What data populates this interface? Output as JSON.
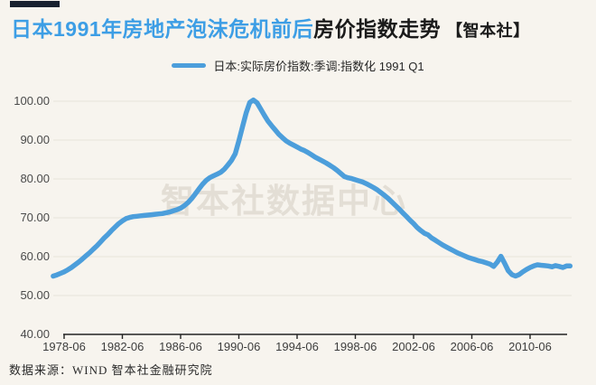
{
  "page": {
    "background": "#f7f4ee"
  },
  "header": {
    "title_highlight": "日本1991年房地产泡沫危机前后",
    "title_main": "房价指数走势",
    "brand_badge": "【智本社】"
  },
  "legend": {
    "label": "日本:实际房价指数:季调:指数化 1991 Q1"
  },
  "footer": {
    "source": "数据来源：WIND 智本社金融研究院"
  },
  "chart_data": {
    "type": "line",
    "title": "日本1991年房地产泡沫危机前后房价指数走势",
    "watermark": "智本社数据中心",
    "grid": "horizontal",
    "legend_position": "top-center",
    "y_axis": {
      "min": 40,
      "max": 100,
      "step": 10,
      "tick_labels": [
        "100.00",
        "90.00",
        "80.00",
        "70.00",
        "60.00",
        "50.00",
        "40.00"
      ]
    },
    "x_axis": {
      "tick_labels": [
        "1978-06",
        "1982-06",
        "1986-06",
        "1990-06",
        "1994-06",
        "1998-06",
        "2002-06",
        "2006-06",
        "2010-06"
      ]
    },
    "series": [
      {
        "name": "日本:实际房价指数:季调:指数化 1991 Q1",
        "color": "#4c9edb",
        "x": [
          "1977-09",
          "1977-12",
          "1978-03",
          "1978-06",
          "1978-09",
          "1978-12",
          "1979-03",
          "1979-06",
          "1979-09",
          "1979-12",
          "1980-03",
          "1980-06",
          "1980-09",
          "1980-12",
          "1981-03",
          "1981-06",
          "1981-09",
          "1981-12",
          "1982-03",
          "1982-06",
          "1982-09",
          "1982-12",
          "1983-03",
          "1983-06",
          "1983-09",
          "1983-12",
          "1984-03",
          "1984-06",
          "1984-09",
          "1984-12",
          "1985-03",
          "1985-06",
          "1985-09",
          "1985-12",
          "1986-03",
          "1986-06",
          "1986-09",
          "1986-12",
          "1987-03",
          "1987-06",
          "1987-09",
          "1987-12",
          "1988-03",
          "1988-06",
          "1988-09",
          "1988-12",
          "1989-03",
          "1989-06",
          "1989-09",
          "1989-12",
          "1990-03",
          "1990-06",
          "1990-09",
          "1990-12",
          "1991-03",
          "1991-06",
          "1991-09",
          "1991-12",
          "1992-03",
          "1992-06",
          "1992-09",
          "1992-12",
          "1993-03",
          "1993-06",
          "1993-09",
          "1993-12",
          "1994-03",
          "1994-06",
          "1994-09",
          "1994-12",
          "1995-03",
          "1995-06",
          "1995-09",
          "1995-12",
          "1996-03",
          "1996-06",
          "1996-09",
          "1996-12",
          "1997-03",
          "1997-06",
          "1997-09",
          "1997-12",
          "1998-03",
          "1998-06",
          "1998-09",
          "1998-12",
          "1999-03",
          "1999-06",
          "1999-09",
          "1999-12",
          "2000-03",
          "2000-06",
          "2000-09",
          "2000-12",
          "2001-03",
          "2001-06",
          "2001-09",
          "2001-12",
          "2002-03",
          "2002-06",
          "2002-09",
          "2002-12",
          "2003-03",
          "2003-06",
          "2003-09",
          "2003-12",
          "2004-03",
          "2004-06",
          "2004-09",
          "2004-12",
          "2005-03",
          "2005-06",
          "2005-09",
          "2005-12",
          "2006-03",
          "2006-06",
          "2006-09",
          "2006-12",
          "2007-03",
          "2007-06",
          "2007-09",
          "2007-12",
          "2008-03",
          "2008-06",
          "2008-09",
          "2008-12",
          "2009-03",
          "2009-06",
          "2009-09",
          "2009-12",
          "2010-03",
          "2010-06",
          "2010-09",
          "2010-12",
          "2011-03",
          "2011-06",
          "2011-09",
          "2011-12",
          "2012-03",
          "2012-06",
          "2012-09",
          "2012-12",
          "2013-03"
        ],
        "values": [
          55.0,
          55.3,
          55.7,
          56.1,
          56.6,
          57.2,
          57.9,
          58.6,
          59.4,
          60.2,
          61.0,
          61.9,
          62.8,
          63.8,
          64.8,
          65.7,
          66.7,
          67.6,
          68.5,
          69.2,
          69.8,
          70.1,
          70.3,
          70.4,
          70.5,
          70.6,
          70.7,
          70.8,
          70.9,
          71.0,
          71.1,
          71.3,
          71.5,
          71.8,
          72.1,
          72.5,
          73.1,
          73.9,
          74.9,
          76.1,
          77.4,
          78.6,
          79.6,
          80.3,
          80.8,
          81.2,
          81.7,
          82.5,
          83.6,
          84.8,
          86.5,
          89.8,
          93.4,
          97.0,
          99.7,
          100.3,
          99.6,
          98.0,
          96.4,
          94.9,
          93.7,
          92.6,
          91.5,
          90.6,
          89.8,
          89.2,
          88.7,
          88.2,
          87.7,
          87.3,
          86.8,
          86.2,
          85.6,
          85.1,
          84.6,
          84.1,
          83.5,
          82.9,
          82.2,
          81.4,
          80.6,
          80.3,
          80.1,
          79.8,
          79.5,
          79.2,
          78.8,
          78.3,
          77.8,
          77.2,
          76.5,
          75.8,
          75.0,
          74.1,
          73.2,
          72.3,
          71.3,
          70.4,
          69.4,
          68.5,
          67.5,
          66.7,
          66.0,
          65.6,
          64.8,
          64.2,
          63.6,
          63.0,
          62.5,
          62.0,
          61.5,
          61.0,
          60.6,
          60.2,
          59.8,
          59.5,
          59.2,
          58.9,
          58.7,
          58.4,
          58.1,
          57.5,
          58.6,
          60.1,
          58.3,
          56.4,
          55.4,
          55.0,
          55.4,
          56.1,
          56.7,
          57.2,
          57.6,
          57.9,
          57.8,
          57.7,
          57.6,
          57.4,
          57.7,
          57.5,
          57.2,
          57.6,
          57.6
        ]
      }
    ]
  }
}
